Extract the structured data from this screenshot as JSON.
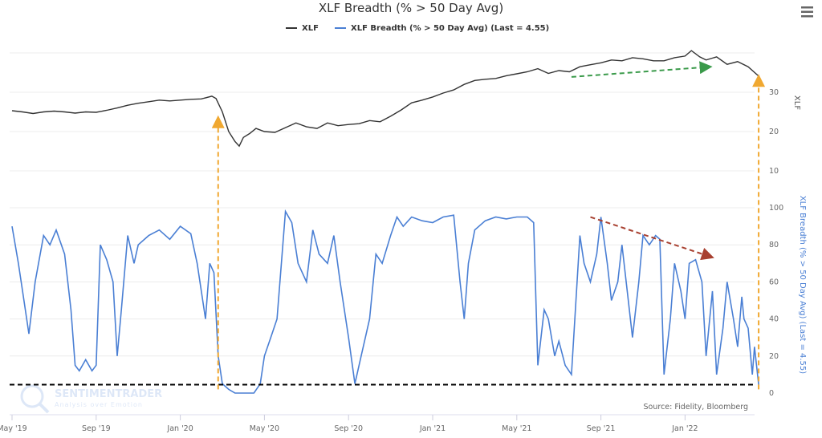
{
  "chart_data": {
    "type": "line",
    "title": "XLF Breadth (% > 50 Day Avg)",
    "legend": [
      "XLF",
      "XLF Breadth (% > 50 Day Avg) (Last = 4.55)"
    ],
    "legend_placement": "top-center",
    "x_unit": "months since May 2019",
    "x_ticks": [
      "May '19",
      "Sep '19",
      "Jan '20",
      "May '20",
      "Sep '20",
      "Jan '21",
      "May '21",
      "Sep '21",
      "Jan '22"
    ],
    "x_tick_values": [
      0,
      4,
      8,
      12,
      16,
      20,
      24,
      28,
      32
    ],
    "xlim": [
      -0.1,
      35.5
    ],
    "grid": true,
    "series": [
      {
        "name": "XLF",
        "color": "#333333",
        "axis": "XLF",
        "x": [
          0,
          0.5,
          1,
          1.5,
          2,
          2.5,
          3,
          3.5,
          4,
          4.5,
          5,
          5.5,
          6,
          6.5,
          7,
          7.5,
          8,
          8.5,
          9,
          9.5,
          9.7,
          10,
          10.3,
          10.6,
          10.8,
          11,
          11.3,
          11.6,
          12,
          12.5,
          13,
          13.5,
          14,
          14.5,
          15,
          15.5,
          16,
          16.5,
          17,
          17.5,
          18,
          18.5,
          19,
          19.5,
          20,
          20.5,
          21,
          21.5,
          22,
          22.5,
          23,
          23.5,
          24,
          24.5,
          25,
          25.5,
          26,
          26.5,
          27,
          27.5,
          28,
          28.5,
          29,
          29.5,
          30,
          30.5,
          31,
          31.5,
          32,
          32.3,
          32.7,
          33,
          33.5,
          34,
          34.5,
          35,
          35.5
        ],
        "values": [
          25.3,
          25.0,
          24.6,
          25.0,
          25.2,
          25.0,
          24.7,
          25.0,
          24.9,
          25.4,
          26.0,
          26.7,
          27.2,
          27.6,
          28.0,
          27.8,
          28.0,
          28.2,
          28.3,
          29.0,
          28.4,
          25.0,
          20.0,
          17.5,
          16.3,
          18.5,
          19.5,
          20.8,
          20.0,
          19.8,
          21.0,
          22.2,
          21.2,
          20.8,
          22.2,
          21.5,
          21.8,
          22.0,
          22.8,
          22.5,
          23.9,
          25.5,
          27.3,
          28.0,
          28.8,
          29.8,
          30.6,
          32.0,
          33.0,
          33.3,
          33.5,
          34.2,
          34.7,
          35.2,
          36.0,
          34.8,
          35.5,
          35.2,
          36.5,
          37.0,
          37.5,
          38.2,
          38.0,
          38.8,
          38.5,
          38.0,
          38.0,
          38.8,
          39.2,
          40.6,
          39.0,
          38.2,
          39.0,
          37.1,
          37.8,
          36.5,
          34.1
        ],
        "ylim": [
          5,
          40
        ],
        "y_ticks": [
          10,
          20,
          30
        ],
        "ylabel": "XLF"
      },
      {
        "name": "XLF Breadth (% > 50 Day Avg)",
        "color": "#4a7fd4",
        "axis": "Breadth",
        "x": [
          0,
          0.3,
          0.5,
          0.8,
          1.1,
          1.5,
          1.8,
          2.1,
          2.5,
          2.8,
          3.0,
          3.2,
          3.5,
          3.8,
          4.0,
          4.2,
          4.5,
          4.8,
          5.0,
          5.2,
          5.5,
          5.8,
          6.0,
          6.5,
          7.0,
          7.5,
          8.0,
          8.5,
          8.8,
          9.0,
          9.2,
          9.4,
          9.6,
          9.8,
          10.0,
          10.3,
          10.6,
          11.0,
          11.5,
          11.8,
          12.0,
          12.3,
          12.6,
          13.0,
          13.3,
          13.6,
          14.0,
          14.3,
          14.6,
          15.0,
          15.3,
          15.6,
          16.0,
          16.3,
          16.6,
          17.0,
          17.3,
          17.6,
          18.0,
          18.3,
          18.6,
          19.0,
          19.5,
          20.0,
          20.5,
          21.0,
          21.3,
          21.5,
          21.7,
          22.0,
          22.5,
          23.0,
          23.5,
          24.0,
          24.5,
          24.8,
          25.0,
          25.3,
          25.5,
          25.8,
          26.0,
          26.3,
          26.6,
          27.0,
          27.2,
          27.5,
          27.8,
          28.0,
          28.3,
          28.5,
          28.8,
          29.0,
          29.3,
          29.5,
          29.8,
          30.0,
          30.3,
          30.6,
          30.8,
          31.0,
          31.3,
          31.5,
          31.8,
          32.0,
          32.2,
          32.5,
          32.8,
          33.0,
          33.3,
          33.5,
          33.8,
          34.0,
          34.3,
          34.5,
          34.7,
          34.8,
          35.0,
          35.2,
          35.3,
          35.5
        ],
        "values": [
          90,
          70,
          55,
          32,
          60,
          85,
          80,
          88,
          75,
          45,
          15,
          12,
          18,
          12,
          15,
          80,
          72,
          60,
          20,
          45,
          85,
          70,
          80,
          85,
          88,
          83,
          90,
          86,
          70,
          55,
          40,
          70,
          65,
          20,
          5,
          2,
          0,
          0,
          0,
          5,
          20,
          30,
          40,
          98,
          92,
          70,
          60,
          88,
          75,
          70,
          85,
          60,
          30,
          5,
          20,
          40,
          75,
          70,
          85,
          95,
          90,
          95,
          93,
          92,
          95,
          96,
          60,
          40,
          70,
          88,
          93,
          95,
          94,
          95,
          95,
          92,
          15,
          45,
          40,
          20,
          28,
          15,
          10,
          85,
          70,
          60,
          75,
          95,
          70,
          50,
          60,
          80,
          50,
          30,
          60,
          85,
          80,
          85,
          83,
          10,
          40,
          70,
          55,
          40,
          70,
          72,
          60,
          20,
          55,
          10,
          35,
          60,
          40,
          25,
          52,
          40,
          35,
          10,
          25,
          4.55
        ],
        "ylim": [
          0,
          100
        ],
        "y_ticks": [
          0,
          20,
          40,
          60,
          80,
          100
        ],
        "ylabel": "XLF Breadth (% > 50 Day Avg) (Last = 4.55)",
        "last": 4.55
      }
    ],
    "annotations": {
      "reference_line": {
        "value": 4.55,
        "axis": "Breadth",
        "style": "dashed",
        "color": "#000000"
      },
      "arrows": [
        {
          "name": "covid-low-arrow",
          "color": "#f0a830",
          "from": {
            "x": 9.8,
            "breadth": 2
          },
          "to": {
            "x": 9.8,
            "xlf": 22.5
          }
        },
        {
          "name": "latest-arrow",
          "color": "#f0a830",
          "from": {
            "x": 35.5,
            "breadth": 2
          },
          "to": {
            "x": 35.5,
            "xlf": 33
          }
        },
        {
          "name": "xlf-uptrend-arrow",
          "color": "#3a9a4a",
          "from": {
            "x": 26.6,
            "xlf": 33.9
          },
          "to": {
            "x": 33.0,
            "xlf": 36.4
          }
        },
        {
          "name": "breadth-downtrend-arrow",
          "color": "#a84030",
          "from": {
            "x": 27.5,
            "breadth": 95
          },
          "to": {
            "x": 33.1,
            "breadth": 74
          }
        }
      ]
    },
    "source": "Source: Fidelity, Bloomberg",
    "watermark": {
      "brand": "SENTIMENTRADER",
      "tagline": "Analysis over Emotion"
    }
  }
}
